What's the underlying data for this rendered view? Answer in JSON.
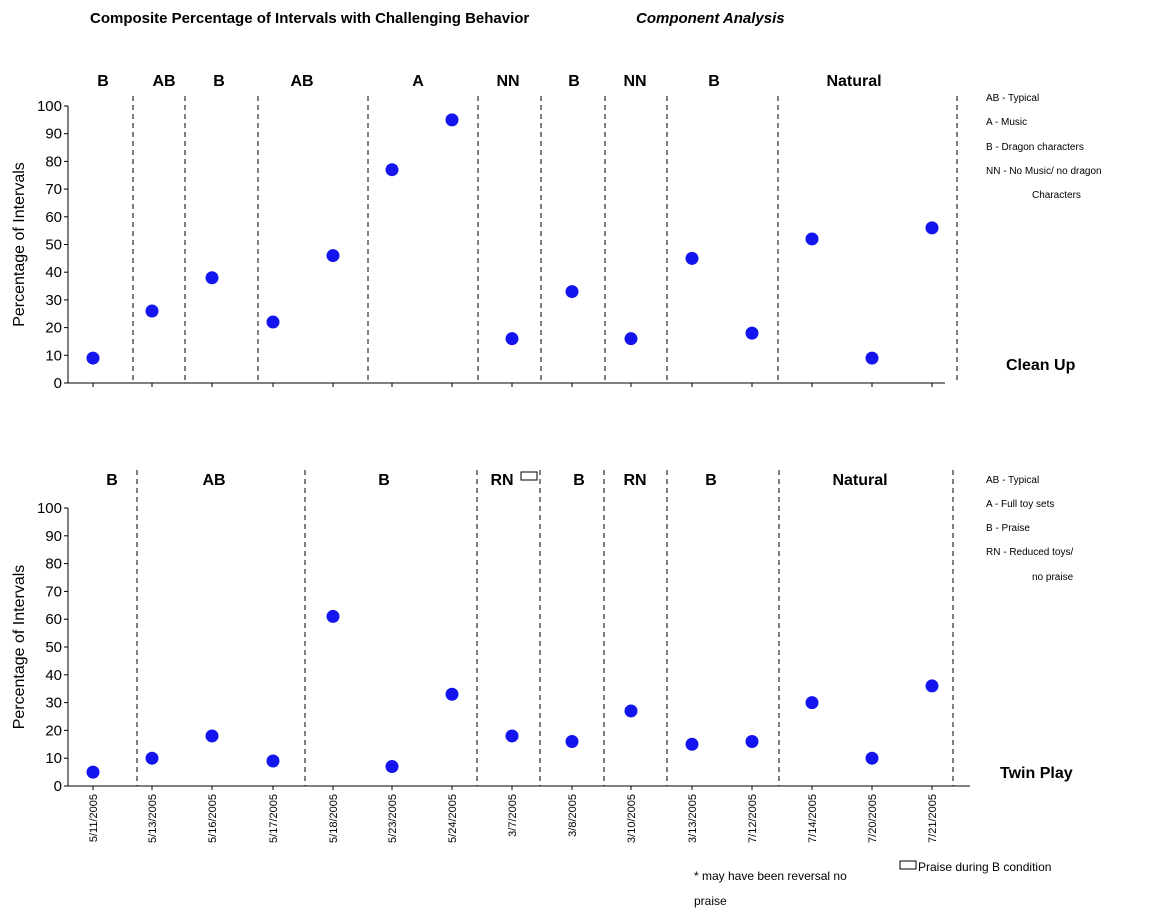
{
  "title": "Composite Percentage of Intervals with Challenging Behavior",
  "subtitle": "Component Analysis",
  "chart_data": [
    {
      "type": "scatter",
      "setting": "Clean Up",
      "ylabel": "Percentage of Intervals",
      "ylim": [
        0,
        100
      ],
      "yticks": [
        0,
        10,
        20,
        30,
        40,
        50,
        60,
        70,
        80,
        90,
        100
      ],
      "x": [
        "5/11/2005",
        "5/13/2005",
        "5/16/2005",
        "5/17/2005",
        "5/18/2005",
        "5/23/2005",
        "5/24/2005",
        "3/7/2005",
        "3/8/2005",
        "3/10/2005",
        "3/13/2005",
        "7/12/2005",
        "7/14/2005",
        "7/20/2005",
        "7/21/2005"
      ],
      "values": [
        9,
        26,
        38,
        22,
        46,
        77,
        95,
        16,
        33,
        16,
        45,
        18,
        52,
        9,
        56
      ],
      "phases": [
        "B",
        "AB",
        "B",
        "AB",
        "A",
        "NN",
        "B",
        "NN",
        "B",
        "Natural"
      ],
      "legend": [
        "AB - Typical",
        "A - Music",
        "B - Dragon characters",
        "NN - No Music/ no dragon",
        "Characters"
      ]
    },
    {
      "type": "scatter",
      "setting": "Twin Play",
      "ylabel": "Percentage of Intervals",
      "ylim": [
        0,
        100
      ],
      "yticks": [
        0,
        10,
        20,
        30,
        40,
        50,
        60,
        70,
        80,
        90,
        100
      ],
      "x": [
        "5/11/2005",
        "5/13/2005",
        "5/16/2005",
        "5/17/2005",
        "5/18/2005",
        "5/23/2005",
        "5/24/2005",
        "3/7/2005",
        "3/8/2005",
        "3/10/2005",
        "3/13/2005",
        "7/12/2005",
        "7/14/2005",
        "7/20/2005",
        "7/21/2005"
      ],
      "values": [
        5,
        10,
        18,
        9,
        61,
        7,
        33,
        18,
        16,
        27,
        15,
        16,
        30,
        10,
        36
      ],
      "phases": [
        "B",
        "AB",
        "B",
        "RN",
        "B",
        "RN",
        "B",
        "Natural"
      ],
      "legend": [
        "AB - Typical",
        "A - Full toy sets",
        "B - Praise",
        "RN - Reduced toys/",
        "no praise"
      ]
    }
  ],
  "notes": {
    "praise": "Praise during B condition",
    "reversal": "* may have been reversal no",
    "reversal_cont": "praise"
  }
}
